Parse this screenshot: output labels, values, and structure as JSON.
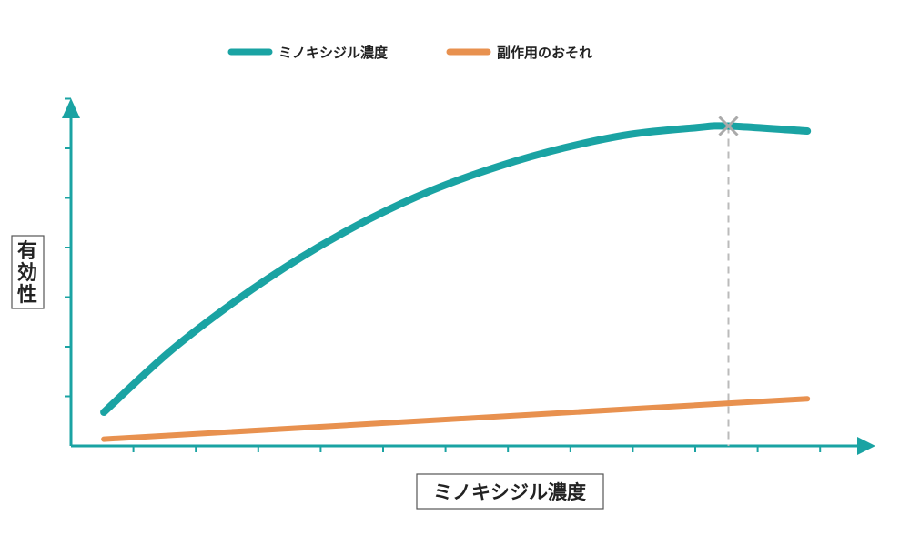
{
  "chart_data": {
    "type": "line",
    "title": "",
    "xlabel": "ミノキシジル濃度",
    "ylabel": "有効性",
    "xlim": [
      0,
      12
    ],
    "ylim": [
      0,
      10
    ],
    "x_ticks_count": 12,
    "y_ticks_count": 7,
    "grid": false,
    "legend_position": "top-center",
    "series": [
      {
        "name": "ミノキシジル濃度",
        "color": "#1aa3a3",
        "x": [
          0.5,
          1.5,
          2.5,
          3.5,
          4.5,
          5.5,
          6.5,
          7.5,
          8.5,
          9.5,
          10.0,
          11.2
        ],
        "y": [
          1.0,
          2.8,
          4.3,
          5.6,
          6.7,
          7.6,
          8.3,
          8.85,
          9.25,
          9.45,
          9.5,
          9.35
        ]
      },
      {
        "name": "副作用のおそれ",
        "color": "#e8914f",
        "x": [
          0.5,
          11.2
        ],
        "y": [
          0.2,
          1.4
        ]
      }
    ],
    "marker": {
      "x": 10.0,
      "y": 9.5,
      "symbol": "cross",
      "color": "#aaaaaa"
    },
    "axis_color": "#1aa3a3"
  }
}
